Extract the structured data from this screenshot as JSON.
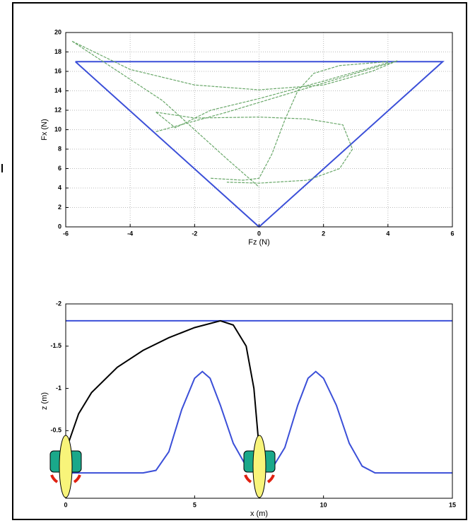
{
  "chart_data": [
    {
      "type": "line",
      "xlabel": "Fz (N)",
      "ylabel": "Fx (N)",
      "xlim": [
        -6,
        6
      ],
      "xticks": [
        -6,
        -4,
        -2,
        0,
        2,
        4,
        6
      ],
      "ylim": [
        0,
        20
      ],
      "yticks": [
        0,
        2,
        4,
        6,
        8,
        10,
        12,
        14,
        16,
        18,
        20
      ],
      "grid": true,
      "series": [
        {
          "color": "#3b4fd8",
          "x": [
            -5.7,
            0,
            5.7,
            -5.7
          ],
          "values": [
            17,
            0,
            17,
            17
          ]
        },
        {
          "color": "#6aa86a",
          "x": [
            -5.8,
            -4,
            -2,
            0,
            2,
            3.5,
            4.3
          ],
          "values": [
            19.1,
            16.2,
            14.6,
            14.1,
            14.6,
            16,
            17.1
          ]
        },
        {
          "color": "#6aa86a",
          "x": [
            -5.8,
            -3,
            -1,
            0
          ],
          "values": [
            19.1,
            13,
            7,
            4.1
          ]
        },
        {
          "color": "#6aa86a",
          "x": [
            -1.5,
            -0.5,
            0,
            0.4,
            0.8,
            1.2,
            1.7,
            2.5,
            4
          ],
          "values": [
            5,
            4.8,
            5,
            7.5,
            11,
            14,
            15.8,
            16.6,
            17
          ]
        },
        {
          "color": "#6aa86a",
          "x": [
            -3.2,
            -2,
            0,
            1.5,
            2.6,
            2.9,
            2.5,
            1.5,
            0,
            -1
          ],
          "values": [
            11.8,
            11.2,
            11.3,
            11.1,
            10.5,
            8,
            6,
            4.8,
            4.5,
            4.6
          ]
        },
        {
          "color": "#6aa86a",
          "x": [
            -3.2,
            -1,
            1.5,
            3,
            4.3
          ],
          "values": [
            9.8,
            11.8,
            14.3,
            15.8,
            17.1
          ]
        },
        {
          "color": "#6aa86a",
          "x": [
            -3.2,
            -2.6,
            -1.5,
            0,
            2,
            4
          ],
          "values": [
            11.8,
            10.2,
            12,
            13.2,
            15,
            16.9
          ]
        }
      ]
    },
    {
      "type": "line",
      "xlabel": "x (m)",
      "ylabel": "z (m)",
      "xlim": [
        0,
        15
      ],
      "xticks": [
        0,
        5,
        10,
        15
      ],
      "ylim": [
        -2,
        0.3
      ],
      "yticks": [
        -2,
        -1.5,
        -1,
        -0.5
      ],
      "y_reversed": true,
      "grid": false,
      "series": [
        {
          "color": "#3b4fd8",
          "x": [
            0,
            15
          ],
          "values": [
            -1.8,
            -1.8
          ]
        },
        {
          "color": "#3b4fd8",
          "x": [
            0,
            3,
            3.5,
            4,
            4.5,
            5,
            5.3,
            5.6,
            6,
            6.5,
            7,
            7.5,
            8,
            8.5,
            9,
            9.4,
            9.7,
            10,
            10.5,
            11,
            11.5,
            12,
            15
          ],
          "values": [
            0,
            0,
            -0.03,
            -0.25,
            -0.75,
            -1.12,
            -1.2,
            -1.12,
            -0.8,
            -0.35,
            -0.08,
            0,
            -0.05,
            -0.3,
            -0.8,
            -1.12,
            -1.2,
            -1.12,
            -0.8,
            -0.35,
            -0.08,
            0,
            0
          ]
        },
        {
          "color": "#000000",
          "x": [
            0.1,
            0.5,
            1,
            2,
            3,
            4,
            5,
            6,
            6.5,
            7,
            7.3,
            7.5
          ],
          "values": [
            -0.35,
            -0.7,
            -0.95,
            -1.25,
            -1.45,
            -1.6,
            -1.72,
            -1.8,
            -1.75,
            -1.5,
            -1,
            -0.3
          ]
        }
      ]
    }
  ]
}
